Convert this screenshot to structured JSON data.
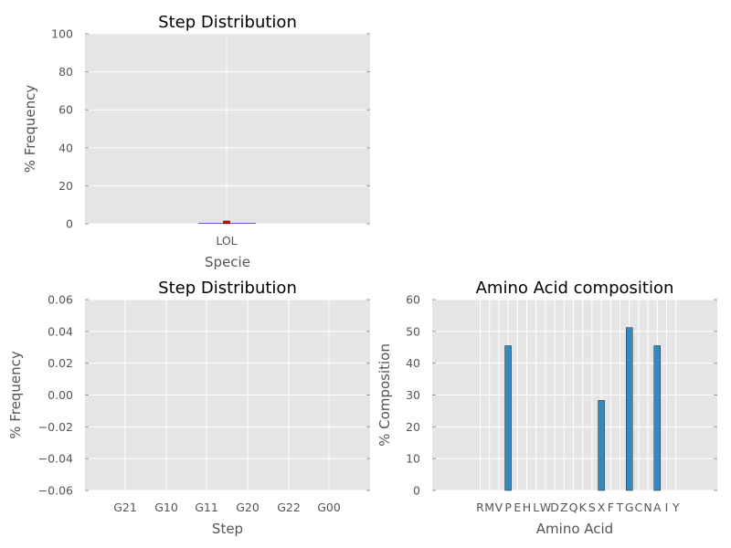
{
  "colors": {
    "axes_bg": "#e5e5e5",
    "grid": "#ffffff",
    "tick_text": "#555555",
    "bar_blue": "#348abd",
    "bar_red": "#e00000"
  },
  "chart_data": [
    {
      "type": "bar",
      "title": "Step Distribution",
      "xlabel": "Specie",
      "ylabel": "% Frequency",
      "categories": [
        "LOL"
      ],
      "values": [
        1.5
      ],
      "ylim": [
        0,
        100
      ],
      "yticks": [
        "0",
        "20",
        "40",
        "60",
        "80",
        "100"
      ],
      "grid": true
    },
    {
      "type": "bar",
      "title": "Step Distribution",
      "xlabel": "Step",
      "ylabel": "% Frequency",
      "categories": [
        "G21",
        "G10",
        "G11",
        "G20",
        "G22",
        "G00"
      ],
      "values": [
        0,
        0,
        0,
        0,
        0,
        0
      ],
      "ylim": [
        -0.06,
        0.06
      ],
      "yticks": [
        "−0.06",
        "−0.04",
        "−0.02",
        "0.00",
        "0.02",
        "0.04",
        "0.06"
      ],
      "grid": true
    },
    {
      "type": "bar",
      "title": "Amino Acid composition",
      "xlabel": "Amino Acid",
      "ylabel": "% Composition",
      "categories": [
        "R",
        "M",
        "V",
        "P",
        "E",
        "H",
        "L",
        "W",
        "D",
        "Z",
        "Q",
        "K",
        "S",
        "X",
        "F",
        "T",
        "G",
        "C",
        "N",
        "A",
        "I",
        "Y"
      ],
      "values": [
        0,
        0,
        0,
        45.5,
        0,
        0,
        0,
        0,
        0,
        0,
        0,
        0,
        0,
        28.3,
        0,
        0,
        51.2,
        0,
        0,
        45.5,
        0,
        0
      ],
      "ylim": [
        0,
        60
      ],
      "yticks": [
        "0",
        "10",
        "20",
        "30",
        "40",
        "50",
        "60"
      ],
      "grid": true
    }
  ]
}
